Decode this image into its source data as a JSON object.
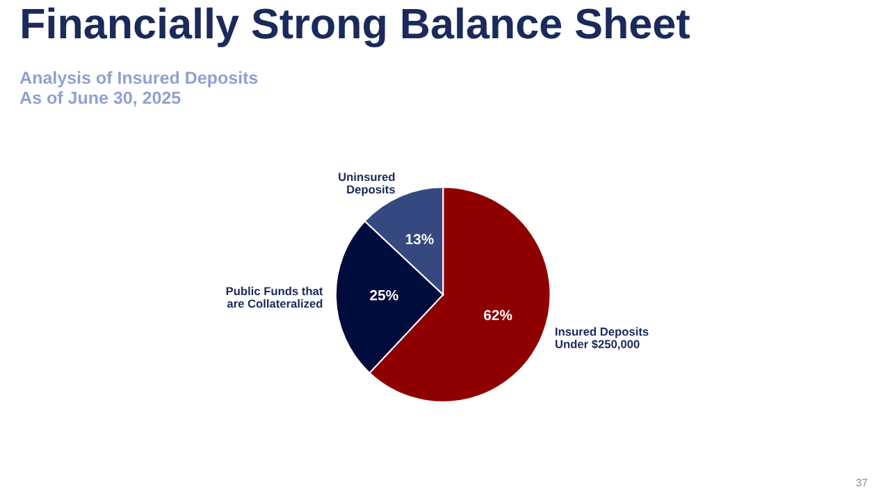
{
  "chart_data": {
    "type": "pie",
    "title": "Financially Strong Balance Sheet",
    "subtitle": "Analysis of Insured Deposits\nAs of June 30, 2025",
    "categories": [
      "Insured Deposits\nUnder $250,000",
      "Public Funds that\nare Collateralized",
      "Uninsured\nDeposits"
    ],
    "values": [
      62,
      25,
      13
    ],
    "colors": [
      "#8f0000",
      "#000c3c",
      "#354880"
    ],
    "value_labels": [
      "62%",
      "25%",
      "13%"
    ],
    "annotations": [
      "37"
    ]
  }
}
